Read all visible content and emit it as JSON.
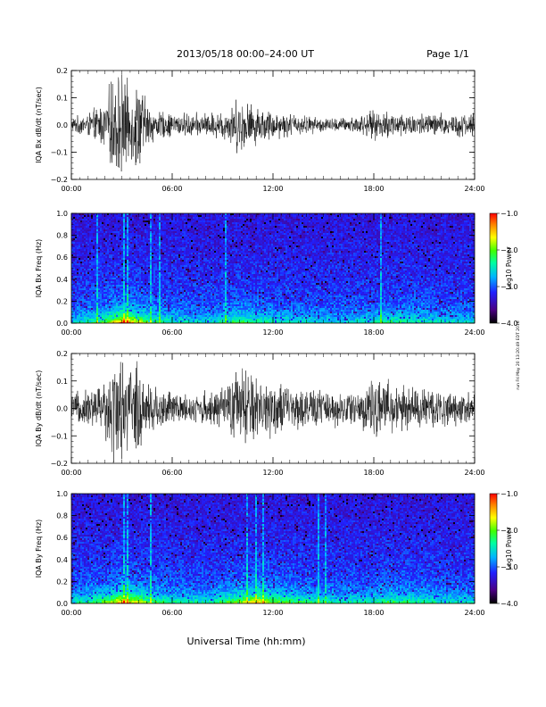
{
  "header": {
    "title": "2013/05/18  00:00–24:00 UT",
    "page": "Page 1/1"
  },
  "footer": {
    "xlabel": "Universal Time (hh:mm)",
    "side_note": "run Fri May 20 13:20:49 EDT 2016"
  },
  "colors": {
    "line": "#000000",
    "colormap": [
      "#000000",
      "#4b0082",
      "#2020ff",
      "#00b4ff",
      "#00ffa0",
      "#40ff00",
      "#ffff00",
      "#ff8000",
      "#ff0000"
    ]
  },
  "chart_data": [
    {
      "type": "line",
      "ylabel": "IQA Bx dB/dt (nT/sec)",
      "xlim": [
        0,
        24
      ],
      "ylim": [
        -0.2,
        0.2
      ],
      "x_ticks": [
        "00:00",
        "06:00",
        "12:00",
        "18:00",
        "24:00"
      ],
      "y_ticks": [
        "0.2",
        "0.1",
        "0.0",
        "−0.1",
        "−0.2"
      ],
      "y_tick_values": [
        0.2,
        0.1,
        0.0,
        -0.1,
        -0.2
      ],
      "envelope_hours": [
        0,
        1,
        2,
        2.5,
        3,
        3.5,
        4,
        4.5,
        5,
        6,
        7,
        8,
        9,
        10,
        11,
        12,
        13,
        14,
        15,
        16,
        17,
        18,
        19,
        20,
        21,
        22,
        23,
        24
      ],
      "envelope_amplitude": [
        0.03,
        0.05,
        0.1,
        0.22,
        0.22,
        0.15,
        0.2,
        0.1,
        0.06,
        0.05,
        0.05,
        0.05,
        0.06,
        0.12,
        0.08,
        0.06,
        0.05,
        0.04,
        0.03,
        0.03,
        0.04,
        0.06,
        0.06,
        0.05,
        0.05,
        0.05,
        0.05,
        0.05
      ]
    },
    {
      "type": "heatmap",
      "ylabel": "IQA Bx Freq (Hz)",
      "xlim": [
        0,
        24
      ],
      "ylim": [
        0,
        1.0
      ],
      "x_ticks": [
        "00:00",
        "06:00",
        "12:00",
        "18:00",
        "24:00"
      ],
      "y_ticks": [
        "1.0",
        "0.8",
        "0.6",
        "0.4",
        "0.2",
        "0.0"
      ],
      "y_tick_values": [
        1.0,
        0.8,
        0.6,
        0.4,
        0.2,
        0.0
      ],
      "colorbar": {
        "label": "Log10 Power",
        "range": [
          -4.0,
          -1.0
        ],
        "ticks": [
          "−1.0",
          "−2.0",
          "−3.0",
          "−4.0"
        ],
        "tick_values": [
          -1.0,
          -2.0,
          -3.0,
          -4.0
        ]
      },
      "activity_hours": [
        0,
        2,
        3,
        4,
        5,
        6,
        8,
        10,
        11,
        12,
        14,
        16,
        18,
        19,
        20,
        22,
        24
      ],
      "activity_level": [
        0.3,
        0.6,
        1.0,
        0.8,
        0.5,
        0.4,
        0.35,
        0.55,
        0.5,
        0.4,
        0.35,
        0.3,
        0.4,
        0.5,
        0.45,
        0.35,
        0.3
      ],
      "vertical_streaks_hours": [
        1.5,
        3.1,
        3.3,
        4.7,
        5.3,
        9.2,
        18.4
      ]
    },
    {
      "type": "line",
      "ylabel": "IQA By dB/dt (nT/sec)",
      "xlim": [
        0,
        24
      ],
      "ylim": [
        -0.2,
        0.2
      ],
      "x_ticks": [
        "00:00",
        "06:00",
        "12:00",
        "18:00",
        "24:00"
      ],
      "y_ticks": [
        "0.2",
        "0.1",
        "0.0",
        "−0.1",
        "−0.2"
      ],
      "y_tick_values": [
        0.2,
        0.1,
        0.0,
        -0.1,
        -0.2
      ],
      "envelope_hours": [
        0,
        1,
        2,
        2.5,
        3,
        3.5,
        4,
        4.5,
        5,
        6,
        7,
        8,
        9,
        10,
        11,
        12,
        13,
        14,
        15,
        16,
        17,
        18,
        19,
        20,
        21,
        22,
        23,
        24
      ],
      "envelope_amplitude": [
        0.06,
        0.08,
        0.12,
        0.22,
        0.22,
        0.18,
        0.2,
        0.12,
        0.1,
        0.07,
        0.06,
        0.07,
        0.08,
        0.18,
        0.14,
        0.12,
        0.09,
        0.08,
        0.08,
        0.07,
        0.08,
        0.12,
        0.11,
        0.09,
        0.09,
        0.08,
        0.07,
        0.06
      ]
    },
    {
      "type": "heatmap",
      "ylabel": "IQA By Freq (Hz)",
      "xlim": [
        0,
        24
      ],
      "ylim": [
        0,
        1.0
      ],
      "x_ticks": [
        "00:00",
        "06:00",
        "12:00",
        "18:00",
        "24:00"
      ],
      "y_ticks": [
        "1.0",
        "0.8",
        "0.6",
        "0.4",
        "0.2",
        "0.0"
      ],
      "y_tick_values": [
        1.0,
        0.8,
        0.6,
        0.4,
        0.2,
        0.0
      ],
      "colorbar": {
        "label": "Log10 Power",
        "range": [
          -4.0,
          -1.0
        ],
        "ticks": [
          "−1.0",
          "−2.0",
          "−3.0",
          "−4.0"
        ],
        "tick_values": [
          -1.0,
          -2.0,
          -3.0,
          -4.0
        ]
      },
      "activity_hours": [
        0,
        2,
        3,
        4,
        5,
        6,
        8,
        10,
        11,
        12,
        13,
        14,
        16,
        18,
        19,
        20,
        22,
        24
      ],
      "activity_level": [
        0.35,
        0.6,
        1.0,
        0.8,
        0.55,
        0.45,
        0.4,
        0.7,
        0.9,
        0.65,
        0.6,
        0.5,
        0.4,
        0.45,
        0.55,
        0.5,
        0.4,
        0.35
      ],
      "vertical_streaks_hours": [
        3.1,
        3.3,
        4.7,
        10.5,
        11.0,
        11.4,
        14.7,
        15.1
      ]
    }
  ]
}
